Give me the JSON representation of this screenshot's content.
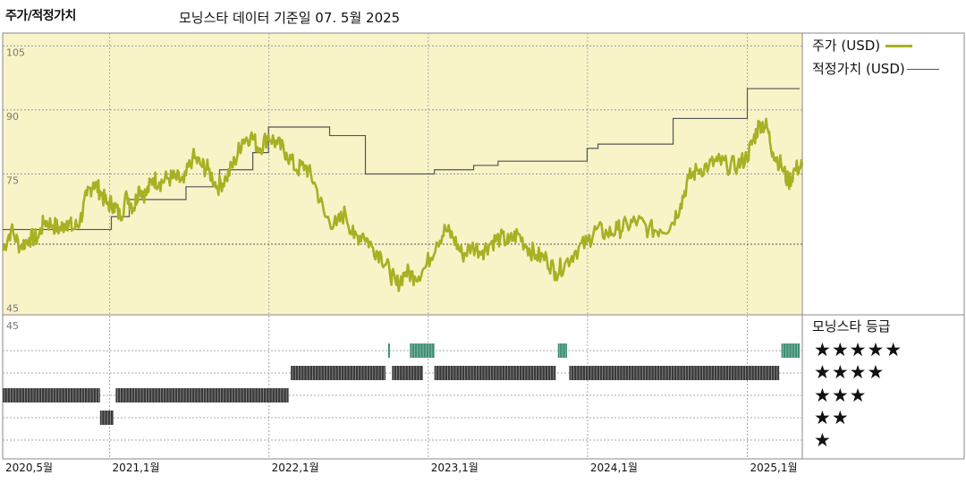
{
  "header": {
    "chart_title": "주가/적정가치",
    "source_label": "모닝스타 데이터 기준일 07. 5월 2025"
  },
  "legend": {
    "price_label": "주가 (USD)",
    "fair_value_label": "적정가치 (USD)"
  },
  "rating": {
    "title": "모닝스타 등급",
    "levels": [
      "★★★★★",
      "★★★★",
      "★★★",
      "★★",
      "★"
    ]
  },
  "colors": {
    "panel_bg": "#f8f4c8",
    "price": "#a8b023",
    "fair_value": "#555555",
    "rating_gray": "#3a3a3a",
    "rating_teal": "#3f8f74"
  },
  "chart_data": {
    "type": "line",
    "ylim": [
      42,
      108
    ],
    "yticks": [
      45,
      75,
      90,
      105
    ],
    "xlim": [
      "2020-05-01",
      "2025-05-07"
    ],
    "xticks": [
      {
        "date": "2020-05-01",
        "label": "2020,5월"
      },
      {
        "date": "2021-01-01",
        "label": "2021,1월"
      },
      {
        "date": "2022-01-01",
        "label": "2022,1월"
      },
      {
        "date": "2023-01-01",
        "label": "2023,1월"
      },
      {
        "date": "2024-01-01",
        "label": "2024,1월"
      },
      {
        "date": "2025-01-01",
        "label": "2025,1월"
      }
    ],
    "series": [
      {
        "name": "주가 (USD)",
        "points": [
          [
            "2020-05-01",
            57
          ],
          [
            "2020-05-20",
            62
          ],
          [
            "2020-06-10",
            58
          ],
          [
            "2020-07-01",
            60
          ],
          [
            "2020-07-20",
            60
          ],
          [
            "2020-08-05",
            64
          ],
          [
            "2020-08-25",
            63
          ],
          [
            "2020-09-10",
            62
          ],
          [
            "2020-09-25",
            64
          ],
          [
            "2020-10-10",
            62
          ],
          [
            "2020-10-25",
            64
          ],
          [
            "2020-11-10",
            70
          ],
          [
            "2020-11-25",
            73
          ],
          [
            "2020-12-10",
            71
          ],
          [
            "2020-12-25",
            68
          ],
          [
            "2021-01-10",
            68
          ],
          [
            "2021-01-25",
            65
          ],
          [
            "2021-02-10",
            70
          ],
          [
            "2021-02-25",
            67
          ],
          [
            "2021-03-10",
            72
          ],
          [
            "2021-03-25",
            70
          ],
          [
            "2021-04-10",
            74
          ],
          [
            "2021-04-25",
            73
          ],
          [
            "2021-05-15",
            74
          ],
          [
            "2021-06-01",
            74
          ],
          [
            "2021-06-20",
            73
          ],
          [
            "2021-07-10",
            79
          ],
          [
            "2021-07-30",
            77
          ],
          [
            "2021-08-15",
            76
          ],
          [
            "2021-09-05",
            72
          ],
          [
            "2021-09-25",
            74
          ],
          [
            "2021-10-15",
            78
          ],
          [
            "2021-11-01",
            83
          ],
          [
            "2021-11-20",
            84
          ],
          [
            "2021-12-10",
            81
          ],
          [
            "2021-12-31",
            84
          ],
          [
            "2022-01-20",
            82
          ],
          [
            "2022-02-10",
            80
          ],
          [
            "2022-03-05",
            76
          ],
          [
            "2022-03-25",
            77
          ],
          [
            "2022-04-15",
            73
          ],
          [
            "2022-05-10",
            65
          ],
          [
            "2022-06-05",
            63
          ],
          [
            "2022-06-25",
            66
          ],
          [
            "2022-07-15",
            60
          ],
          [
            "2022-08-05",
            61
          ],
          [
            "2022-08-25",
            58
          ],
          [
            "2022-09-15",
            56
          ],
          [
            "2022-10-05",
            52
          ],
          [
            "2022-10-20",
            49
          ],
          [
            "2022-11-10",
            52
          ],
          [
            "2022-12-01",
            51
          ],
          [
            "2022-12-25",
            53
          ],
          [
            "2023-01-20",
            59
          ],
          [
            "2023-02-10",
            62
          ],
          [
            "2023-02-28",
            60
          ],
          [
            "2023-03-20",
            56
          ],
          [
            "2023-04-10",
            58
          ],
          [
            "2023-05-05",
            57
          ],
          [
            "2023-05-25",
            59
          ],
          [
            "2023-06-15",
            60
          ],
          [
            "2023-07-05",
            59
          ],
          [
            "2023-07-25",
            61
          ],
          [
            "2023-08-15",
            58
          ],
          [
            "2023-09-05",
            56
          ],
          [
            "2023-09-30",
            55
          ],
          [
            "2023-10-20",
            52
          ],
          [
            "2023-11-10",
            54
          ],
          [
            "2023-12-05",
            57
          ],
          [
            "2023-12-31",
            59
          ],
          [
            "2024-01-20",
            62
          ],
          [
            "2024-02-15",
            61
          ],
          [
            "2024-03-10",
            62
          ],
          [
            "2024-04-01",
            63
          ],
          [
            "2024-04-25",
            64
          ],
          [
            "2024-05-20",
            62
          ],
          [
            "2024-06-15",
            62
          ],
          [
            "2024-07-10",
            63
          ],
          [
            "2024-08-01",
            68
          ],
          [
            "2024-08-20",
            74
          ],
          [
            "2024-09-10",
            76
          ],
          [
            "2024-10-05",
            77
          ],
          [
            "2024-10-25",
            78
          ],
          [
            "2024-11-15",
            77
          ],
          [
            "2024-12-10",
            77
          ],
          [
            "2024-12-31",
            79
          ],
          [
            "2025-01-15",
            83
          ],
          [
            "2025-01-30",
            87
          ],
          [
            "2025-02-15",
            86
          ],
          [
            "2025-03-01",
            80
          ],
          [
            "2025-03-20",
            77
          ],
          [
            "2025-04-05",
            73
          ],
          [
            "2025-04-20",
            76
          ],
          [
            "2025-05-07",
            77
          ]
        ]
      },
      {
        "name": "적정가치 (USD)",
        "steps": [
          [
            "2020-05-01",
            62
          ],
          [
            "2021-01-05",
            65
          ],
          [
            "2021-02-15",
            69
          ],
          [
            "2021-06-25",
            72
          ],
          [
            "2021-09-10",
            76
          ],
          [
            "2021-11-25",
            80
          ],
          [
            "2021-12-31",
            86
          ],
          [
            "2022-05-20",
            84
          ],
          [
            "2022-08-10",
            75
          ],
          [
            "2023-01-15",
            76
          ],
          [
            "2023-04-15",
            77
          ],
          [
            "2023-06-10",
            78
          ],
          [
            "2023-12-31",
            81
          ],
          [
            "2024-01-25",
            82
          ],
          [
            "2024-07-15",
            88
          ],
          [
            "2024-11-01",
            88
          ],
          [
            "2025-01-01",
            95
          ],
          [
            "2025-05-01",
            95
          ]
        ]
      }
    ],
    "rating_bars": [
      {
        "stars": 5,
        "from": "2022-10-01",
        "to": "2022-10-05"
      },
      {
        "stars": 5,
        "from": "2022-11-20",
        "to": "2023-01-15"
      },
      {
        "stars": 5,
        "from": "2023-10-25",
        "to": "2023-11-15"
      },
      {
        "stars": 5,
        "from": "2025-03-20",
        "to": "2025-05-01"
      },
      {
        "stars": 4,
        "from": "2022-02-20",
        "to": "2022-09-25"
      },
      {
        "stars": 4,
        "from": "2022-10-10",
        "to": "2022-12-20"
      },
      {
        "stars": 4,
        "from": "2023-01-15",
        "to": "2023-10-20"
      },
      {
        "stars": 4,
        "from": "2023-11-20",
        "to": "2025-03-15"
      },
      {
        "stars": 3,
        "from": "2020-05-01",
        "to": "2020-12-10"
      },
      {
        "stars": 3,
        "from": "2021-01-15",
        "to": "2022-02-15"
      },
      {
        "stars": 2,
        "from": "2020-12-10",
        "to": "2021-01-10"
      }
    ]
  }
}
